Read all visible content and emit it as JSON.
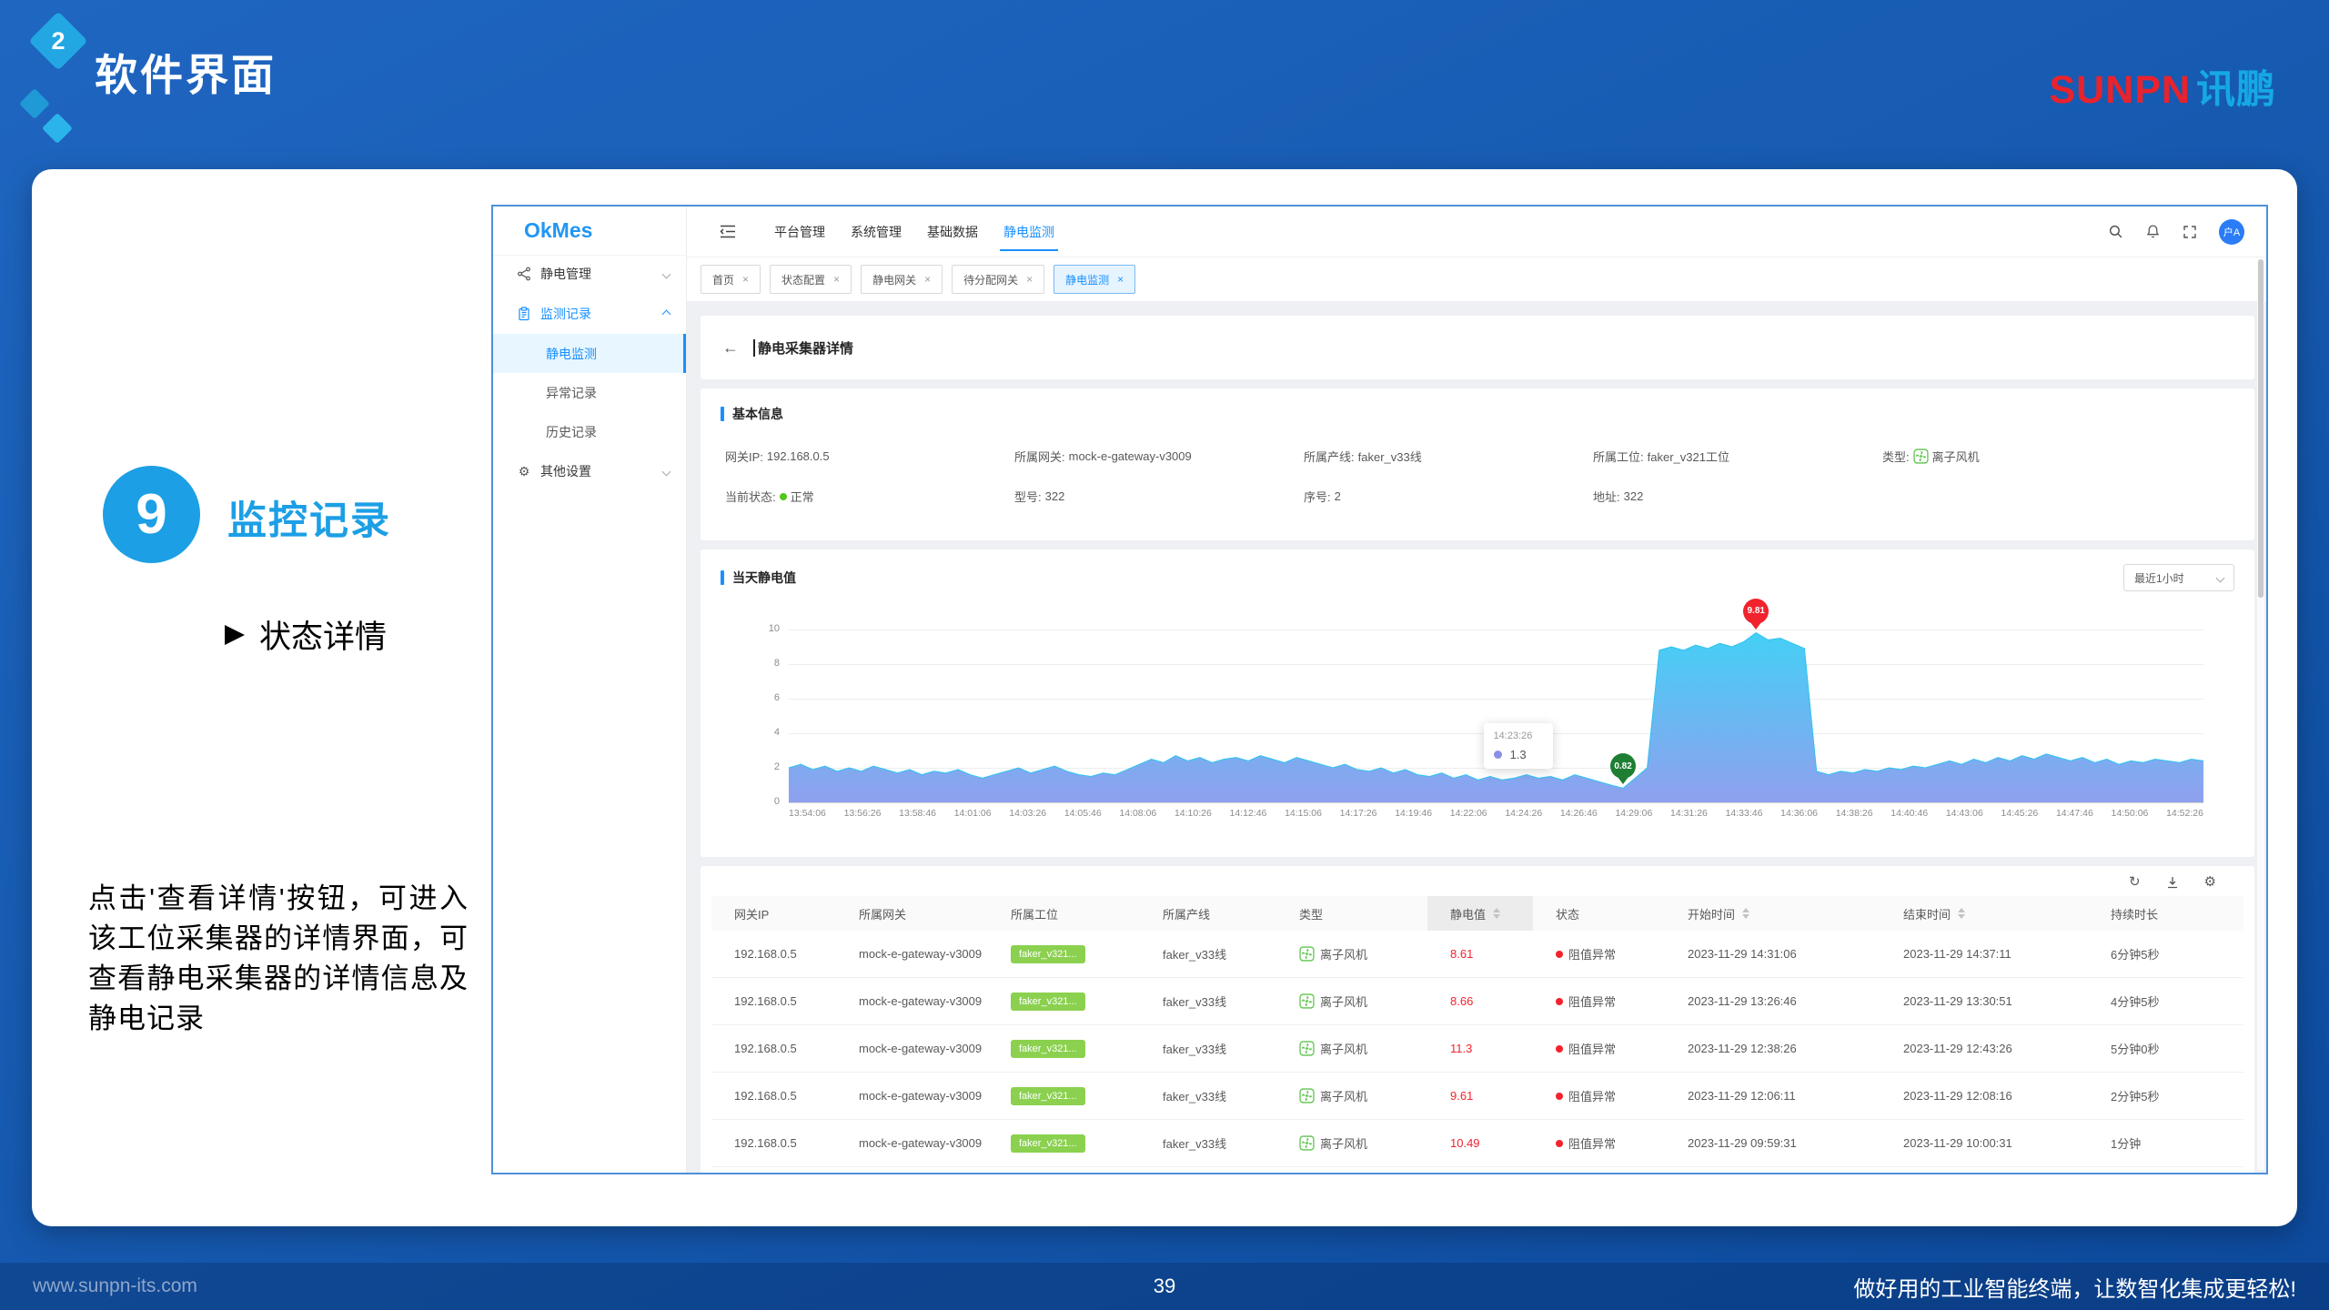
{
  "slide": {
    "section_number": "2",
    "section_title": "软件界面",
    "logo": {
      "en": "SUNPN",
      "cn": "讯鹏"
    },
    "step": {
      "number": "9",
      "title": "监控记录",
      "bullet": "状态详情",
      "description": "点击'查看详情'按钮，可进入该工位采集器的详情界面，可查看静电采集器的详情信息及静电记录"
    },
    "footer": {
      "website": "www.sunpn-its.com",
      "page_number": "39",
      "slogan": "做好用的工业智能终端，让数智化集成更轻松!"
    }
  },
  "app": {
    "logo": "OkMes",
    "sidebar": {
      "groups": [
        {
          "label": "静电管理"
        },
        {
          "label": "监测记录",
          "children": [
            "静电监测",
            "异常记录",
            "历史记录"
          ],
          "active_child": 0
        },
        {
          "label": "其他设置"
        }
      ]
    },
    "top_nav": {
      "items": [
        "平台管理",
        "系统管理",
        "基础数据",
        "静电监测"
      ],
      "active_index": 3
    },
    "tabs": [
      {
        "label": "首页"
      },
      {
        "label": "状态配置"
      },
      {
        "label": "静电网关"
      },
      {
        "label": "待分配网关"
      },
      {
        "label": "静电监测",
        "active": true
      }
    ],
    "page": {
      "back_icon": "←",
      "title": "静电采集器详情"
    },
    "basic_info": {
      "title": "基本信息",
      "row1": [
        {
          "label": "网关IP",
          "value": "192.168.0.5"
        },
        {
          "label": "所属网关",
          "value": "mock-e-gateway-v3009"
        },
        {
          "label": "所属产线",
          "value": "faker_v33线"
        },
        {
          "label": "所属工位",
          "value": "faker_v321工位"
        },
        {
          "label": "类型",
          "value": "离子风机",
          "icon": "fan"
        }
      ],
      "row2": [
        {
          "label": "当前状态",
          "value": "正常",
          "dot": "green"
        },
        {
          "label": "型号",
          "value": "322"
        },
        {
          "label": "序号",
          "value": "2"
        },
        {
          "label": "地址",
          "value": "322"
        }
      ]
    },
    "chart_panel": {
      "title": "当天静电值",
      "range_select": "最近1小时"
    },
    "table": {
      "columns": [
        {
          "label": "网关IP"
        },
        {
          "label": "所属网关"
        },
        {
          "label": "所属工位"
        },
        {
          "label": "所属产线"
        },
        {
          "label": "类型"
        },
        {
          "label": "静电值",
          "sortable": true,
          "shaded": true
        },
        {
          "label": "状态"
        },
        {
          "label": "开始时间",
          "sortable": true
        },
        {
          "label": "结束时间",
          "sortable": true
        },
        {
          "label": "持续时长"
        }
      ],
      "rows": [
        {
          "ip": "192.168.0.5",
          "gateway": "mock-e-gateway-v3009",
          "station": "faker_v321...",
          "line": "faker_v33线",
          "type": "离子风机",
          "value": "8.61",
          "status": "阻值异常",
          "start": "2023-11-29 14:31:06",
          "end": "2023-11-29 14:37:11",
          "duration": "6分钟5秒"
        },
        {
          "ip": "192.168.0.5",
          "gateway": "mock-e-gateway-v3009",
          "station": "faker_v321...",
          "line": "faker_v33线",
          "type": "离子风机",
          "value": "8.66",
          "status": "阻值异常",
          "start": "2023-11-29 13:26:46",
          "end": "2023-11-29 13:30:51",
          "duration": "4分钟5秒"
        },
        {
          "ip": "192.168.0.5",
          "gateway": "mock-e-gateway-v3009",
          "station": "faker_v321...",
          "line": "faker_v33线",
          "type": "离子风机",
          "value": "11.3",
          "status": "阻值异常",
          "start": "2023-11-29 12:38:26",
          "end": "2023-11-29 12:43:26",
          "duration": "5分钟0秒"
        },
        {
          "ip": "192.168.0.5",
          "gateway": "mock-e-gateway-v3009",
          "station": "faker_v321...",
          "line": "faker_v33线",
          "type": "离子风机",
          "value": "9.61",
          "status": "阻值异常",
          "start": "2023-11-29 12:06:11",
          "end": "2023-11-29 12:08:16",
          "duration": "2分钟5秒"
        },
        {
          "ip": "192.168.0.5",
          "gateway": "mock-e-gateway-v3009",
          "station": "faker_v321...",
          "line": "faker_v33线",
          "type": "离子风机",
          "value": "10.49",
          "status": "阻值异常",
          "start": "2023-11-29 09:59:31",
          "end": "2023-11-29 10:00:31",
          "duration": "1分钟"
        }
      ]
    },
    "avatar_label": "户A"
  },
  "chart_data": {
    "type": "area",
    "title": "当天静电值",
    "xlabel": "",
    "ylabel": "",
    "ylim": [
      0,
      10
    ],
    "yticks": [
      0,
      2,
      4,
      6,
      8,
      10
    ],
    "grid": true,
    "x_labels": [
      "13:54:06",
      "13:56:26",
      "13:58:46",
      "14:01:06",
      "14:03:26",
      "14:05:46",
      "14:08:06",
      "14:10:26",
      "14:12:46",
      "14:15:06",
      "14:17:26",
      "14:19:46",
      "14:22:06",
      "14:24:26",
      "14:26:46",
      "14:29:06",
      "14:31:26",
      "14:33:46",
      "14:36:06",
      "14:38:26",
      "14:40:46",
      "14:43:06",
      "14:45:26",
      "14:47:46",
      "14:50:06",
      "14:52:26"
    ],
    "values": [
      2.0,
      2.2,
      1.9,
      2.1,
      1.8,
      2.0,
      1.8,
      2.1,
      1.9,
      1.7,
      1.9,
      1.6,
      1.8,
      1.7,
      1.9,
      1.6,
      1.4,
      1.6,
      1.8,
      2.0,
      1.7,
      1.9,
      2.1,
      1.8,
      1.6,
      1.5,
      1.7,
      1.6,
      1.9,
      2.2,
      2.5,
      2.3,
      2.7,
      2.4,
      2.6,
      2.3,
      2.5,
      2.6,
      2.4,
      2.7,
      2.5,
      2.3,
      2.6,
      2.4,
      2.2,
      2.0,
      2.2,
      1.9,
      1.8,
      2.0,
      1.7,
      1.9,
      1.6,
      1.5,
      1.7,
      1.4,
      1.6,
      1.3,
      1.5,
      1.3,
      1.4,
      1.6,
      1.4,
      1.5,
      1.3,
      1.6,
      1.4,
      1.2,
      1.0,
      0.82,
      1.4,
      2.0,
      8.8,
      9.0,
      8.8,
      9.1,
      8.9,
      9.2,
      9.0,
      9.3,
      9.81,
      9.4,
      9.5,
      9.2,
      8.9,
      1.8,
      1.6,
      1.8,
      1.7,
      1.9,
      1.8,
      2.0,
      1.9,
      2.1,
      2.0,
      2.2,
      2.4,
      2.2,
      2.5,
      2.3,
      2.6,
      2.4,
      2.7,
      2.5,
      2.8,
      2.6,
      2.4,
      2.6,
      2.3,
      2.5,
      2.2,
      2.4,
      2.3,
      2.5,
      2.4,
      2.3,
      2.5,
      2.4
    ],
    "markers": {
      "max": {
        "value": "9.81",
        "index": 80
      },
      "min": {
        "value": "0.82",
        "index": 69
      }
    },
    "tooltip": {
      "time": "14:23:26",
      "value": "1.3",
      "index": 57
    }
  },
  "colors": {
    "accent_blue": "#1c9fe5",
    "app_primary": "#1890ff",
    "logo_red": "#e8232d",
    "logo_cyan": "#16a8e6",
    "chart_top": "#3acdf5",
    "chart_bottom": "#8a9bee",
    "alert_red": "#f5222d",
    "badge_green": "#8bd14f",
    "ok_green": "#52c41a",
    "pin_red": "#f0232e",
    "pin_green": "#1e7e34",
    "tooltip_dot": "#8a90e8"
  }
}
